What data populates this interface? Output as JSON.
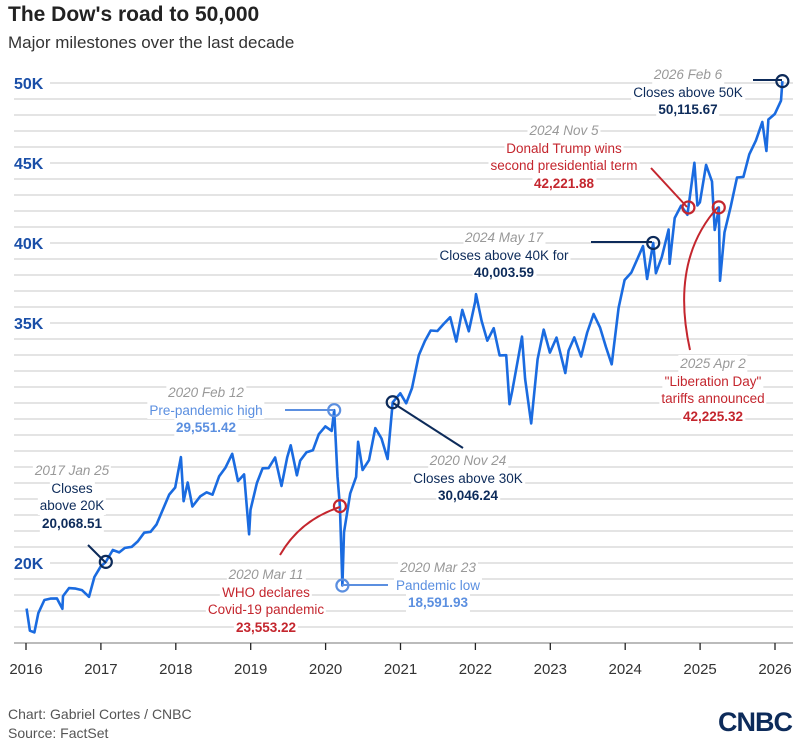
{
  "title": "The Dow's road to 50,000",
  "subtitle": "Major milestones over the last decade",
  "credit": {
    "chart": "Chart: Gabriel Cortes / CNBC",
    "source": "Source: FactSet"
  },
  "logo": "CNBC",
  "colors": {
    "line": "#1a6be0",
    "navy": "#0d2b5a",
    "red": "#c4262e",
    "light_blue": "#5b8fe0",
    "grid": "#d4d4d4",
    "axis_label": "#1a4fa8"
  },
  "chart_data": {
    "type": "line",
    "title": "The Dow's road to 50,000",
    "subtitle": "Major milestones over the last decade",
    "xlabel": "",
    "ylabel": "",
    "xlim": [
      "2016-01-01",
      "2026-02-15"
    ],
    "ylim": [
      15000,
      50000
    ],
    "grid": true,
    "x_ticks": [
      "2016",
      "2017",
      "2018",
      "2019",
      "2020",
      "2021",
      "2022",
      "2023",
      "2024",
      "2025",
      "2026"
    ],
    "y_ticks": [
      {
        "value": 20000,
        "label": "20K"
      },
      {
        "value": 35000,
        "label": "35K"
      },
      {
        "value": 40000,
        "label": "40K"
      },
      {
        "value": 45000,
        "label": "45K"
      },
      {
        "value": 50000,
        "label": "50K"
      }
    ],
    "series": [
      {
        "values": [
          [
            "2016-01-04",
            17149
          ],
          [
            "2016-01-20",
            15766
          ],
          [
            "2016-02-11",
            15660
          ],
          [
            "2016-03-01",
            16865
          ],
          [
            "2016-03-31",
            17685
          ],
          [
            "2016-04-29",
            17774
          ],
          [
            "2016-05-31",
            17787
          ],
          [
            "2016-06-27",
            17140
          ],
          [
            "2016-06-30",
            17930
          ],
          [
            "2016-07-29",
            18432
          ],
          [
            "2016-08-31",
            18400
          ],
          [
            "2016-09-30",
            18308
          ],
          [
            "2016-11-04",
            17888
          ],
          [
            "2016-11-30",
            19124
          ],
          [
            "2016-12-30",
            19763
          ],
          [
            "2017-01-25",
            20068
          ],
          [
            "2017-02-28",
            20812
          ],
          [
            "2017-03-31",
            20663
          ],
          [
            "2017-04-28",
            20941
          ],
          [
            "2017-05-31",
            21009
          ],
          [
            "2017-06-30",
            21350
          ],
          [
            "2017-07-31",
            21891
          ],
          [
            "2017-08-31",
            21948
          ],
          [
            "2017-09-29",
            22405
          ],
          [
            "2017-10-31",
            23377
          ],
          [
            "2017-11-30",
            24272
          ],
          [
            "2017-12-29",
            24719
          ],
          [
            "2018-01-26",
            26617
          ],
          [
            "2018-02-08",
            23860
          ],
          [
            "2018-02-28",
            25029
          ],
          [
            "2018-03-23",
            23533
          ],
          [
            "2018-04-30",
            24163
          ],
          [
            "2018-05-31",
            24416
          ],
          [
            "2018-06-29",
            24271
          ],
          [
            "2018-07-31",
            25415
          ],
          [
            "2018-08-31",
            25965
          ],
          [
            "2018-10-03",
            26828
          ],
          [
            "2018-10-31",
            25116
          ],
          [
            "2018-11-30",
            25538
          ],
          [
            "2018-12-24",
            21792
          ],
          [
            "2018-12-31",
            23327
          ],
          [
            "2019-01-31",
            24999
          ],
          [
            "2019-02-28",
            25916
          ],
          [
            "2019-03-29",
            25929
          ],
          [
            "2019-04-30",
            26593
          ],
          [
            "2019-05-31",
            24815
          ],
          [
            "2019-06-28",
            26600
          ],
          [
            "2019-07-15",
            27359
          ],
          [
            "2019-08-14",
            25479
          ],
          [
            "2019-08-30",
            26403
          ],
          [
            "2019-09-30",
            26917
          ],
          [
            "2019-10-31",
            27046
          ],
          [
            "2019-11-29",
            28051
          ],
          [
            "2019-12-31",
            28538
          ],
          [
            "2020-01-31",
            28256
          ],
          [
            "2020-02-12",
            29551
          ],
          [
            "2020-02-28",
            25409
          ],
          [
            "2020-03-11",
            23553
          ],
          [
            "2020-03-23",
            18592
          ],
          [
            "2020-03-31",
            21917
          ],
          [
            "2020-04-30",
            24346
          ],
          [
            "2020-05-29",
            25383
          ],
          [
            "2020-06-08",
            27572
          ],
          [
            "2020-06-30",
            25813
          ],
          [
            "2020-07-31",
            26428
          ],
          [
            "2020-08-31",
            28430
          ],
          [
            "2020-09-30",
            27782
          ],
          [
            "2020-10-30",
            26502
          ],
          [
            "2020-11-24",
            30046
          ],
          [
            "2020-12-31",
            30606
          ],
          [
            "2021-01-29",
            29983
          ],
          [
            "2021-02-26",
            30932
          ],
          [
            "2021-03-31",
            32982
          ],
          [
            "2021-04-30",
            33875
          ],
          [
            "2021-05-28",
            34529
          ],
          [
            "2021-06-30",
            34503
          ],
          [
            "2021-07-30",
            34935
          ],
          [
            "2021-08-31",
            35361
          ],
          [
            "2021-09-30",
            33844
          ],
          [
            "2021-10-29",
            35820
          ],
          [
            "2021-11-30",
            34484
          ],
          [
            "2021-12-31",
            36338
          ],
          [
            "2022-01-04",
            36800
          ],
          [
            "2022-01-31",
            35132
          ],
          [
            "2022-02-28",
            33893
          ],
          [
            "2022-03-31",
            34678
          ],
          [
            "2022-04-29",
            32977
          ],
          [
            "2022-05-31",
            32990
          ],
          [
            "2022-06-16",
            29927
          ],
          [
            "2022-06-30",
            30775
          ],
          [
            "2022-07-29",
            32845
          ],
          [
            "2022-08-16",
            34152
          ],
          [
            "2022-08-31",
            31510
          ],
          [
            "2022-09-30",
            28726
          ],
          [
            "2022-10-31",
            32733
          ],
          [
            "2022-11-30",
            34590
          ],
          [
            "2022-12-30",
            33147
          ],
          [
            "2023-01-31",
            34086
          ],
          [
            "2023-02-28",
            32657
          ],
          [
            "2023-03-15",
            31875
          ],
          [
            "2023-03-31",
            33274
          ],
          [
            "2023-04-28",
            34098
          ],
          [
            "2023-05-31",
            32908
          ],
          [
            "2023-06-30",
            34408
          ],
          [
            "2023-07-31",
            35560
          ],
          [
            "2023-08-31",
            34722
          ],
          [
            "2023-09-29",
            33508
          ],
          [
            "2023-10-27",
            32418
          ],
          [
            "2023-11-30",
            35951
          ],
          [
            "2023-12-29",
            37690
          ],
          [
            "2024-01-31",
            38150
          ],
          [
            "2024-02-29",
            38996
          ],
          [
            "2024-03-28",
            39807
          ],
          [
            "2024-04-17",
            37753
          ],
          [
            "2024-05-17",
            40004
          ],
          [
            "2024-05-30",
            38112
          ],
          [
            "2024-06-28",
            39119
          ],
          [
            "2024-07-31",
            40843
          ],
          [
            "2024-08-05",
            38703
          ],
          [
            "2024-08-30",
            41563
          ],
          [
            "2024-09-30",
            42330
          ],
          [
            "2024-10-31",
            41763
          ],
          [
            "2024-11-05",
            42222
          ],
          [
            "2024-12-04",
            45014
          ],
          [
            "2024-12-19",
            42342
          ],
          [
            "2024-12-31",
            42544
          ],
          [
            "2025-01-30",
            44882
          ],
          [
            "2025-02-28",
            43841
          ],
          [
            "2025-03-13",
            40813
          ],
          [
            "2025-03-31",
            42002
          ],
          [
            "2025-04-02",
            42225
          ],
          [
            "2025-04-08",
            37646
          ],
          [
            "2025-04-30",
            40669
          ],
          [
            "2025-05-30",
            42270
          ],
          [
            "2025-06-30",
            44095
          ],
          [
            "2025-07-31",
            44131
          ],
          [
            "2025-08-29",
            45545
          ],
          [
            "2025-09-30",
            46398
          ],
          [
            "2025-10-31",
            47563
          ],
          [
            "2025-11-20",
            45752
          ],
          [
            "2025-11-30",
            47716
          ],
          [
            "2025-12-31",
            48063
          ],
          [
            "2026-01-30",
            48892
          ],
          [
            "2026-02-06",
            50116
          ]
        ]
      }
    ],
    "annotations": [
      {
        "date": "2017-01-25",
        "value": 20068.51,
        "date_label": "2017 Jan 25",
        "lines": [
          "Closes",
          "above 20K"
        ],
        "value_label": "20,068.51",
        "color": "navy"
      },
      {
        "date": "2020-02-12",
        "value": 29551.42,
        "date_label": "2020 Feb 12",
        "lines": [
          "Pre-pandemic high"
        ],
        "value_label": "29,551.42",
        "color": "light_blue"
      },
      {
        "date": "2020-03-11",
        "value": 23553.22,
        "date_label": "2020 Mar 11",
        "lines": [
          "WHO declares",
          "Covid-19 pandemic"
        ],
        "value_label": "23,553.22",
        "color": "red"
      },
      {
        "date": "2020-03-23",
        "value": 18591.93,
        "date_label": "2020 Mar 23",
        "lines": [
          "Pandemic low"
        ],
        "value_label": "18,591.93",
        "color": "light_blue"
      },
      {
        "date": "2020-11-24",
        "value": 30046.24,
        "date_label": "2020 Nov 24",
        "lines": [
          "Closes above 30K"
        ],
        "value_label": "30,046.24",
        "color": "navy"
      },
      {
        "date": "2024-05-17",
        "value": 40003.59,
        "date_label": "2024 May 17",
        "lines": [
          "Closes above 40K for"
        ],
        "value_label": "40,003.59",
        "color": "navy"
      },
      {
        "date": "2024-11-05",
        "value": 42221.88,
        "date_label": "2024 Nov 5",
        "lines": [
          "Donald Trump wins",
          "second presidential term"
        ],
        "value_label": "42,221.88",
        "color": "red"
      },
      {
        "date": "2025-04-02",
        "value": 42225.32,
        "date_label": "2025 Apr 2",
        "lines": [
          "\"Liberation Day\"",
          "tariffs announced"
        ],
        "value_label": "42,225.32",
        "color": "red"
      },
      {
        "date": "2026-02-06",
        "value": 50115.67,
        "date_label": "2026 Feb 6",
        "lines": [
          "Closes above 50K"
        ],
        "value_label": "50,115.67",
        "color": "navy"
      }
    ]
  }
}
